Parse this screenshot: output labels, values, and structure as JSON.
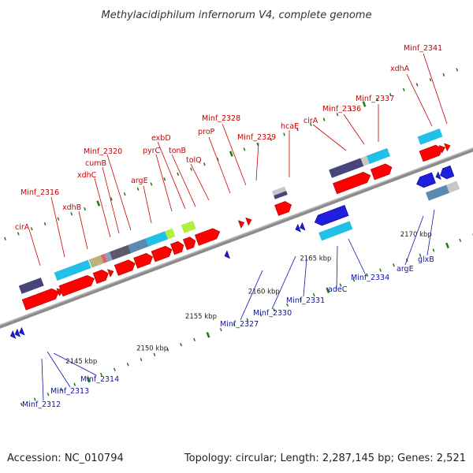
{
  "title": "Methylacidiphilum infernorum V4, complete genome",
  "footer": {
    "accession": "Accession: NC_010794",
    "summary": "Topology: circular; Length: 2,287,145 bp; Genes: 2,521"
  },
  "colors": {
    "backbone": "#888888",
    "forward_gene": "#ff0000",
    "reverse_gene": "#1f1fdd",
    "forward_label": "#cc0000",
    "reverse_label": "#1111aa",
    "tick": "#1a7a1a",
    "cog_cyan": "#22c0e8",
    "cog_slate": "#46467a",
    "cog_khaki": "#bab27a",
    "cog_gray": "#5a5a6a",
    "cog_steel": "#5a8ab0",
    "cog_lime": "#b0f040",
    "cog_lightgray": "#c8c8c8"
  },
  "kbp_markers": [
    "2145 kbp",
    "2150 kbp",
    "2155 kbp",
    "2160 kbp",
    "2165 kbp",
    "2170 kbp"
  ],
  "forward_labels": [
    "cirA",
    "Minf_2316",
    "xdhB",
    "xdhC",
    "cumB",
    "Minf_2320",
    "argE",
    "pyrC",
    "exbD",
    "tonB",
    "tolQ",
    "proP",
    "Minf_2328",
    "Minf_2329",
    "hcaE",
    "cirA",
    "Minf_2336",
    "Minf_2337",
    "xdhA",
    "Minf_2341"
  ],
  "reverse_labels": [
    "Minf_2312",
    "Minf_2313",
    "Minf_2314",
    "Minf_2327",
    "Minf_2330",
    "Minf_2331",
    "adeC",
    "Minf_2334",
    "argE",
    "glxB"
  ]
}
